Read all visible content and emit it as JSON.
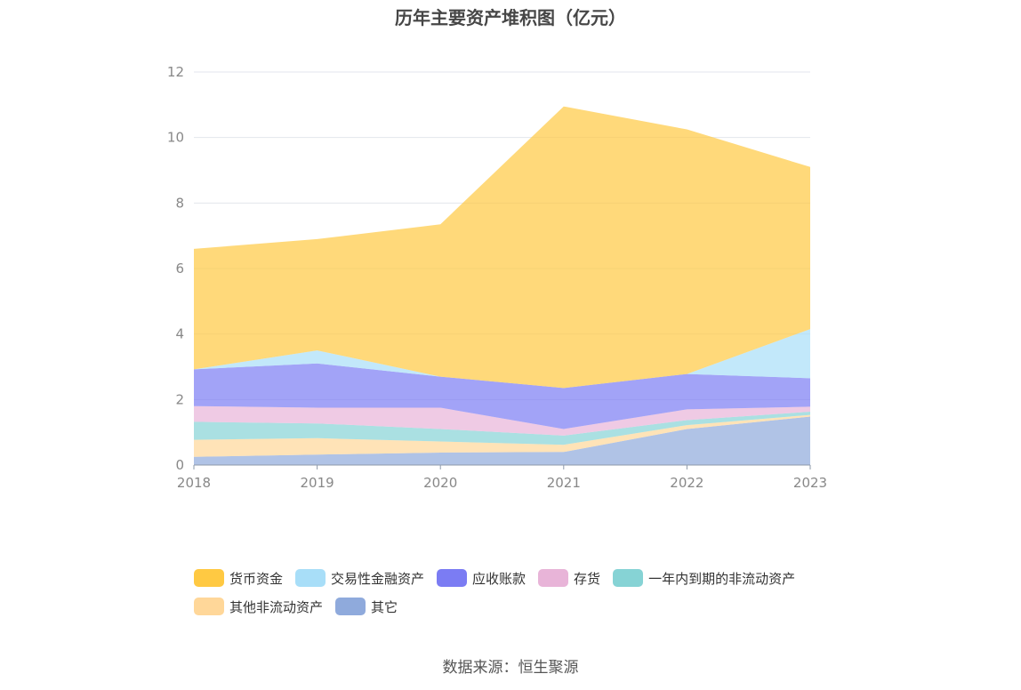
{
  "chart_data": {
    "type": "area",
    "stacked": true,
    "title": "历年主要资产堆积图（亿元）",
    "categories": [
      "2018",
      "2019",
      "2020",
      "2021",
      "2022",
      "2023"
    ],
    "ylim": [
      0,
      12
    ],
    "yticks": [
      "0",
      "2",
      "4",
      "6",
      "8",
      "10",
      "12"
    ],
    "grid": true,
    "legend_position": "bottom",
    "series": [
      {
        "name": "其它",
        "color": "#8FAADC",
        "values": [
          0.25,
          0.32,
          0.38,
          0.4,
          1.1,
          1.48
        ]
      },
      {
        "name": "其他非流动资产",
        "color": "#FFD799",
        "values": [
          0.52,
          0.5,
          0.34,
          0.22,
          0.12,
          0.05
        ]
      },
      {
        "name": "一年内到期的非流动资产",
        "color": "#86D3D5",
        "values": [
          0.55,
          0.45,
          0.38,
          0.28,
          0.15,
          0.1
        ]
      },
      {
        "name": "存货",
        "color": "#E8B4D8",
        "values": [
          0.48,
          0.48,
          0.65,
          0.2,
          0.33,
          0.15
        ]
      },
      {
        "name": "应收账款",
        "color": "#7B7CF3",
        "values": [
          1.12,
          1.35,
          0.95,
          1.25,
          1.08,
          0.87
        ]
      },
      {
        "name": "交易性金融资产",
        "color": "#A8DEF8",
        "values": [
          0.0,
          0.4,
          0.0,
          0.0,
          0.0,
          1.5
        ]
      },
      {
        "name": "货币资金",
        "color": "#FFC942",
        "values": [
          3.68,
          3.4,
          4.65,
          8.6,
          7.47,
          4.95
        ]
      }
    ]
  },
  "legend": {
    "rows": [
      [
        {
          "label": "货币资金",
          "color": "#FFC942"
        },
        {
          "label": "交易性金融资产",
          "color": "#A8DEF8"
        },
        {
          "label": "应收账款",
          "color": "#7B7CF3"
        },
        {
          "label": "存货",
          "color": "#E8B4D8"
        },
        {
          "label": "一年内到期的非流动资产",
          "color": "#86D3D5"
        }
      ],
      [
        {
          "label": "其他非流动资产",
          "color": "#FFD799"
        },
        {
          "label": "其它",
          "color": "#8FAADC"
        }
      ]
    ]
  },
  "source": "数据来源：恒生聚源"
}
